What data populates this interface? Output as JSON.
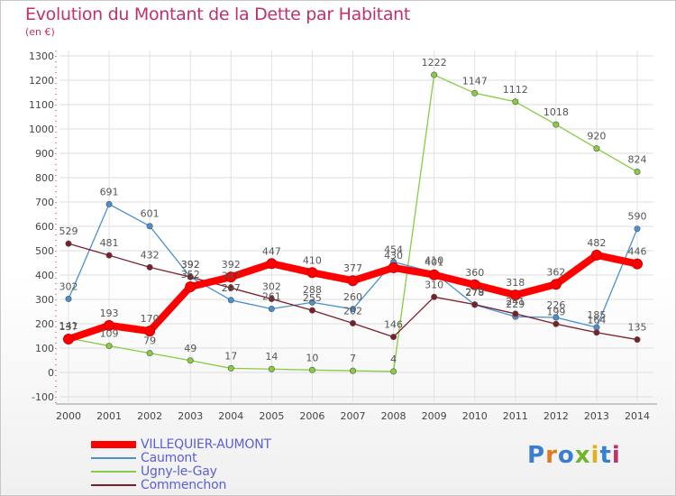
{
  "title": "Evolution du Montant de la Dette par Habitant",
  "subtitle": "(en €)",
  "logo": {
    "text": "Proxiti",
    "colors": [
      "#3a7fcf",
      "#e07a1f",
      "#3a7fcf",
      "#6fb52c",
      "#e0b21f",
      "#3a7fcf",
      "#c0306b"
    ]
  },
  "chart_data": {
    "type": "line",
    "x": [
      "2000",
      "2001",
      "2002",
      "2003",
      "2004",
      "2005",
      "2006",
      "2007",
      "2008",
      "2009",
      "2010",
      "2011",
      "2012",
      "2013",
      "2014"
    ],
    "ylim": [
      -100,
      1300
    ],
    "yticks": [
      -100,
      0,
      100,
      200,
      300,
      400,
      500,
      600,
      700,
      800,
      900,
      1000,
      1100,
      1200,
      1300
    ],
    "grid": true,
    "legend_position": "bottom-left",
    "series": [
      {
        "name": "VILLEQUIER-AUMONT",
        "color": "#ff0000",
        "values": [
          137,
          193,
          170,
          352,
          392,
          447,
          410,
          377,
          430,
          401,
          360,
          318,
          362,
          482,
          446
        ]
      },
      {
        "name": "Caumont",
        "color": "#4a90d0",
        "values": [
          302,
          691,
          601,
          392,
          297,
          261,
          288,
          260,
          454,
          410,
          278,
          229,
          226,
          185,
          590
        ]
      },
      {
        "name": "Ugny-le-Gay",
        "color": "#88cc44",
        "values": [
          141,
          109,
          79,
          49,
          17,
          14,
          10,
          7,
          4,
          1222,
          1147,
          1112,
          1018,
          920,
          824
        ]
      },
      {
        "name": "Commenchon",
        "color": "#7a1e2a",
        "values": [
          529,
          481,
          432,
          392,
          347,
          302,
          255,
          202,
          146,
          310,
          279,
          241,
          199,
          164,
          135
        ]
      }
    ]
  }
}
